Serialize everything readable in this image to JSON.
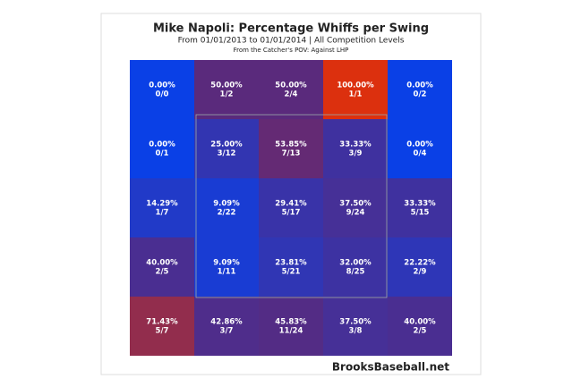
{
  "chart_data": {
    "type": "heatmap",
    "title": "Mike Napoli: Percentage Whiffs per Swing",
    "subtitle": "From 01/01/2013 to 01/01/2014 | All Competition Levels",
    "note": "From the Catcher's POV:  Against LHP",
    "source": "BrooksBaseball.net",
    "values": [
      [
        0,
        50,
        50,
        100,
        0
      ],
      [
        0,
        25,
        53.85,
        33.33,
        0
      ],
      [
        14.29,
        9.09,
        29.41,
        37.5,
        33.33
      ],
      [
        40,
        9.09,
        23.81,
        32,
        22.22
      ],
      [
        71.43,
        42.86,
        45.83,
        37.5,
        40
      ]
    ],
    "value_labels": [
      [
        "0.00%",
        "50.00%",
        "50.00%",
        "100.00%",
        "0.00%"
      ],
      [
        "0.00%",
        "25.00%",
        "53.85%",
        "33.33%",
        "0.00%"
      ],
      [
        "14.29%",
        "9.09%",
        "29.41%",
        "37.50%",
        "33.33%"
      ],
      [
        "40.00%",
        "9.09%",
        "23.81%",
        "32.00%",
        "22.22%"
      ],
      [
        "71.43%",
        "42.86%",
        "45.83%",
        "37.50%",
        "40.00%"
      ]
    ],
    "counts": [
      [
        "0/0",
        "1/2",
        "2/4",
        "1/1",
        "0/2"
      ],
      [
        "0/1",
        "3/12",
        "7/13",
        "3/9",
        "0/4"
      ],
      [
        "1/7",
        "2/22",
        "5/17",
        "9/24",
        "5/15"
      ],
      [
        "2/5",
        "1/11",
        "5/21",
        "8/25",
        "2/9"
      ],
      [
        "5/7",
        "3/7",
        "11/24",
        "3/8",
        "2/5"
      ]
    ],
    "zlim": [
      0,
      100
    ],
    "colors": [
      "#0a40e6",
      "#5a2a7c",
      "#dc300e"
    ]
  }
}
